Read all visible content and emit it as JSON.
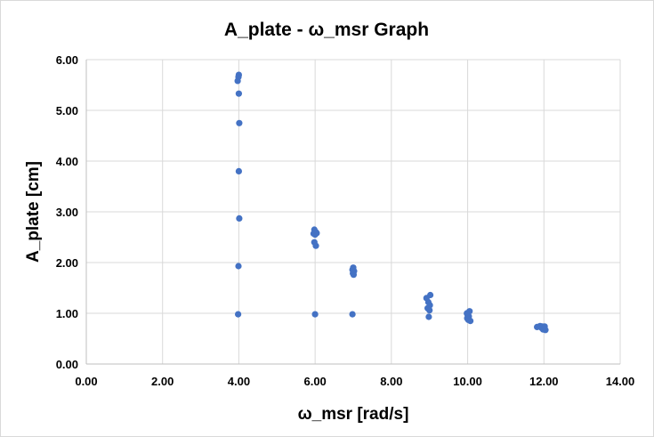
{
  "chart_data": {
    "type": "scatter",
    "title": "A_plate - ω_msr Graph",
    "xlabel": "ω_msr [rad/s]",
    "ylabel": "A_plate [cm]",
    "xlim": [
      0,
      14
    ],
    "ylim": [
      0,
      6
    ],
    "x_ticks": [
      "0.00",
      "2.00",
      "4.00",
      "6.00",
      "8.00",
      "10.00",
      "12.00",
      "14.00"
    ],
    "y_ticks": [
      "0.00",
      "1.00",
      "2.00",
      "3.00",
      "4.00",
      "5.00",
      "6.00"
    ],
    "x_tick_values": [
      0,
      2,
      4,
      6,
      8,
      10,
      12,
      14
    ],
    "y_tick_values": [
      0,
      1,
      2,
      3,
      4,
      5,
      6
    ],
    "grid": true,
    "legend": "none",
    "marker_color": "#4472c4",
    "series": [
      {
        "points": [
          [
            4.0,
            5.7
          ],
          [
            3.99,
            5.66
          ],
          [
            3.97,
            5.58
          ],
          [
            4.0,
            5.33
          ],
          [
            4.01,
            4.75
          ],
          [
            4.0,
            3.8
          ],
          [
            4.01,
            2.87
          ],
          [
            3.99,
            1.93
          ],
          [
            3.98,
            0.98
          ],
          [
            5.98,
            2.65
          ],
          [
            6.02,
            2.6
          ],
          [
            5.96,
            2.57
          ],
          [
            6.04,
            2.58
          ],
          [
            6.0,
            2.55
          ],
          [
            5.98,
            2.4
          ],
          [
            6.02,
            2.33
          ],
          [
            6.0,
            0.98
          ],
          [
            7.0,
            1.9
          ],
          [
            6.98,
            1.86
          ],
          [
            7.02,
            1.83
          ],
          [
            6.99,
            1.79
          ],
          [
            7.01,
            1.76
          ],
          [
            6.98,
            0.98
          ],
          [
            8.92,
            1.3
          ],
          [
            9.02,
            1.36
          ],
          [
            8.97,
            1.22
          ],
          [
            9.01,
            1.16
          ],
          [
            8.95,
            1.1
          ],
          [
            9.0,
            1.06
          ],
          [
            8.98,
            0.93
          ],
          [
            9.98,
            1.0
          ],
          [
            10.05,
            1.04
          ],
          [
            10.0,
            0.96
          ],
          [
            10.03,
            0.94
          ],
          [
            9.99,
            0.9
          ],
          [
            10.02,
            0.87
          ],
          [
            10.07,
            0.85
          ],
          [
            11.82,
            0.73
          ],
          [
            11.9,
            0.75
          ],
          [
            11.96,
            0.74
          ],
          [
            12.02,
            0.74
          ],
          [
            11.94,
            0.71
          ],
          [
            12.0,
            0.7
          ],
          [
            11.98,
            0.68
          ],
          [
            12.04,
            0.67
          ]
        ]
      }
    ]
  }
}
